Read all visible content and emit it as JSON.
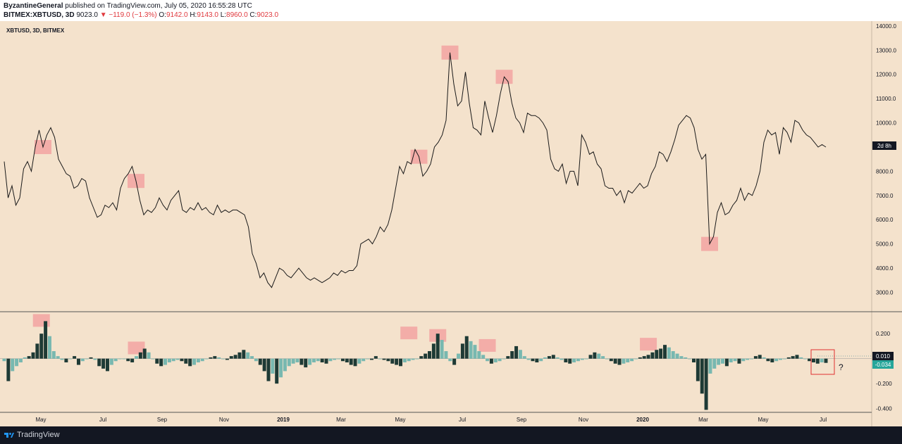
{
  "header": {
    "author": "ByzantineGeneral",
    "published_text": "published on TradingView.com, July 05, 2020 16:55:28 UTC",
    "symbol": "BITMEX:XBTUSD, 3D",
    "price": "9023.0",
    "change": "−119.0 (−1.3%)",
    "o_label": "O:",
    "o_value": "9142.0",
    "h_label": "H:",
    "h_value": "9143.0",
    "l_label": "L:",
    "l_value": "8960.0",
    "c_label": "C:",
    "c_value": "9023.0"
  },
  "footer": {
    "brand": "TradingView"
  },
  "colors": {
    "panel_bg": "#f4e2cc",
    "line": "#1a1a1a",
    "highlight": "#f2a3a1",
    "bar_dark": "#1e3a35",
    "bar_teal": "#78b8b0",
    "badge_price": "#131722",
    "badge_osc": "#26a69a",
    "box_outline": "#e03030"
  },
  "chart_data": [
    {
      "type": "line",
      "title": "XBTUSD, 3D, BITMEX",
      "ylim": [
        2200,
        14200
      ],
      "yticks": [
        "14000.0",
        "13000.0",
        "12000.0",
        "11000.0",
        "10000.0",
        "9000.0",
        "8000.0",
        "7000.0",
        "6000.0",
        "5000.0",
        "4000.0",
        "3000.0"
      ],
      "x_labels": [
        "May",
        "Jul",
        "Sep",
        "Nov",
        "2019",
        "Mar",
        "May",
        "Jul",
        "Sep",
        "Nov",
        "2020",
        "Mar",
        "May",
        "Jul"
      ],
      "price_badge": "2d 8h",
      "series": [
        {
          "values": [
            8400,
            6900,
            7400,
            6600,
            6900,
            8100,
            8400,
            8000,
            9000,
            9700,
            9000,
            9500,
            9800,
            9400,
            8500,
            8200,
            7900,
            7800,
            7300,
            7400,
            7700,
            7600,
            6900,
            6500,
            6100,
            6200,
            6600,
            6500,
            6700,
            6400,
            7300,
            7700,
            7900,
            8200,
            7600,
            6800,
            6200,
            6400,
            6300,
            6500,
            6900,
            6600,
            6400,
            6800,
            7000,
            7200,
            6400,
            6300,
            6500,
            6400,
            6700,
            6400,
            6500,
            6300,
            6200,
            6600,
            6300,
            6400,
            6300,
            6400,
            6400,
            6300,
            6200,
            5700,
            4600,
            4200,
            3600,
            3800,
            3400,
            3200,
            3600,
            4000,
            3900,
            3700,
            3600,
            3800,
            4000,
            3800,
            3600,
            3500,
            3600,
            3500,
            3400,
            3500,
            3600,
            3800,
            3700,
            3900,
            3800,
            3900,
            3900,
            4100,
            5000,
            5100,
            5200,
            5000,
            5300,
            5700,
            5500,
            5800,
            6400,
            7300,
            8200,
            7900,
            8400,
            8300,
            8900,
            8600,
            7800,
            8000,
            8300,
            9000,
            9200,
            9500,
            10100,
            12900,
            11600,
            10700,
            10900,
            12100,
            10800,
            9800,
            9700,
            9500,
            10900,
            10200,
            9600,
            10300,
            11200,
            11900,
            11700,
            10800,
            10200,
            10000,
            9600,
            10400,
            10300,
            10300,
            10200,
            10000,
            9700,
            8500,
            8100,
            8000,
            8300,
            7500,
            8000,
            8000,
            7400,
            9500,
            9200,
            8700,
            8800,
            8300,
            8100,
            7400,
            7300,
            7300,
            7000,
            7200,
            6700,
            7200,
            7100,
            7300,
            7500,
            7300,
            7400,
            7900,
            8200,
            8800,
            8700,
            8400,
            8800,
            9300,
            9900,
            10100,
            10300,
            10200,
            9800,
            8900,
            8500,
            8700,
            5000,
            5300,
            6300,
            6700,
            6200,
            6300,
            6600,
            6800,
            7300,
            6800,
            7100,
            7000,
            7400,
            8000,
            9200,
            9700,
            9500,
            9600,
            8700,
            9800,
            9600,
            9200,
            10100,
            10000,
            9700,
            9500,
            9400,
            9200,
            9000,
            9100,
            9000
          ],
          "highlight_boxes": [
            {
              "label": "",
              "center_index": 10
            },
            {
              "label": "",
              "center_index": 34
            },
            {
              "label": "",
              "center_index": 107
            },
            {
              "label": "",
              "center_index": 115
            },
            {
              "label": "",
              "center_index": 129
            },
            {
              "label": "",
              "center_index": 182
            }
          ]
        }
      ]
    },
    {
      "type": "bar",
      "ylim": [
        -0.43,
        0.37
      ],
      "yticks": [
        "0.200",
        "-0.200",
        "-0.400"
      ],
      "value_badge_1": "0.010",
      "value_badge_2": "-0.034",
      "question_mark": "?",
      "values": [
        -0.02,
        -0.18,
        -0.1,
        -0.06,
        -0.03,
        0.01,
        0.02,
        0.05,
        0.12,
        0.2,
        0.3,
        0.18,
        0.06,
        0.02,
        -0.01,
        -0.03,
        0.0,
        0.02,
        -0.05,
        -0.02,
        0.0,
        0.01,
        -0.01,
        -0.06,
        -0.08,
        -0.1,
        -0.05,
        -0.02,
        0.0,
        0.0,
        -0.02,
        -0.03,
        0.02,
        0.05,
        0.08,
        0.05,
        0.0,
        -0.04,
        -0.06,
        -0.05,
        -0.03,
        -0.02,
        -0.01,
        -0.02,
        -0.04,
        -0.06,
        -0.05,
        -0.03,
        -0.02,
        0.0,
        0.01,
        0.02,
        0.01,
        0.0,
        -0.01,
        0.02,
        0.03,
        0.05,
        0.07,
        0.05,
        0.02,
        -0.02,
        -0.05,
        -0.1,
        -0.18,
        -0.12,
        -0.2,
        -0.15,
        -0.1,
        -0.06,
        -0.04,
        -0.03,
        -0.05,
        -0.07,
        -0.05,
        -0.03,
        -0.02,
        -0.03,
        -0.04,
        -0.02,
        -0.01,
        0.0,
        -0.02,
        -0.03,
        -0.05,
        -0.06,
        -0.04,
        -0.02,
        0.0,
        -0.01,
        0.02,
        0.0,
        -0.01,
        -0.02,
        -0.04,
        -0.05,
        -0.06,
        -0.03,
        -0.02,
        -0.01,
        0.0,
        0.02,
        0.04,
        0.06,
        0.12,
        0.2,
        0.15,
        0.06,
        -0.02,
        -0.05,
        0.04,
        0.12,
        0.18,
        0.14,
        0.11,
        0.06,
        0.03,
        -0.02,
        -0.04,
        -0.03,
        -0.02,
        0.0,
        0.02,
        0.06,
        0.1,
        0.07,
        0.02,
        -0.01,
        -0.02,
        -0.03,
        -0.02,
        0.01,
        0.02,
        0.03,
        0.01,
        -0.01,
        -0.03,
        -0.04,
        -0.03,
        -0.02,
        -0.01,
        0.0,
        0.03,
        0.05,
        0.04,
        0.02,
        0.0,
        -0.02,
        -0.04,
        -0.05,
        -0.04,
        -0.03,
        -0.02,
        0.0,
        0.01,
        0.02,
        0.03,
        0.05,
        0.07,
        0.08,
        0.11,
        0.09,
        0.06,
        0.04,
        0.02,
        0.01,
        0.0,
        -0.03,
        -0.18,
        -0.28,
        -0.41,
        -0.12,
        -0.08,
        -0.05,
        -0.04,
        -0.06,
        -0.03,
        -0.02,
        -0.04,
        -0.02,
        -0.01,
        0.0,
        0.02,
        0.03,
        0.01,
        -0.02,
        -0.03,
        -0.02,
        -0.01,
        0.0,
        0.01,
        0.02,
        0.03,
        0.01,
        0.0,
        -0.02,
        -0.03,
        -0.04,
        -0.03,
        -0.034
      ]
    }
  ]
}
